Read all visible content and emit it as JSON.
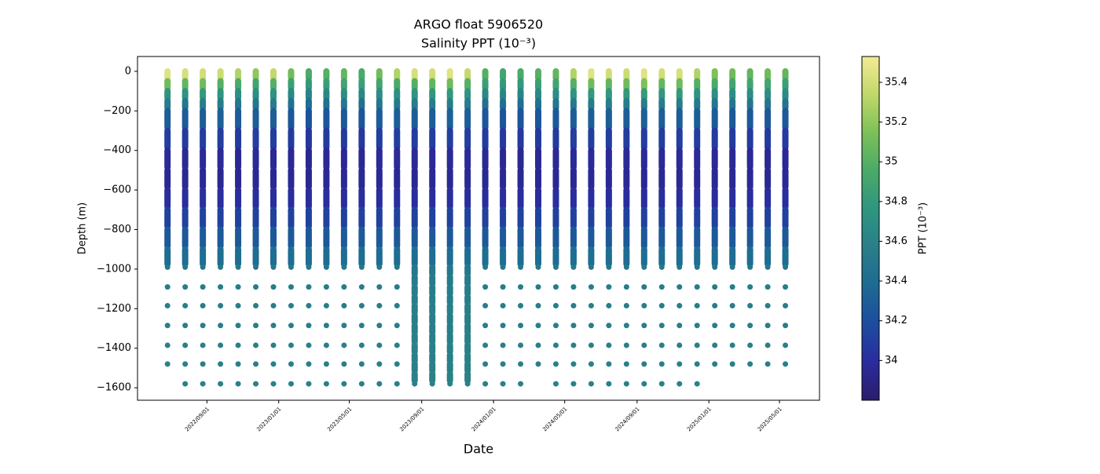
{
  "chart_data": {
    "type": "profile_scatter",
    "title": "ARGO float 5906520",
    "subtitle": "Salinity PPT (10⁻³)",
    "x_label": "Date",
    "y_label": "Depth (m)",
    "colorbar_label": "PPT (10⁻³)",
    "xlim": [
      "2022-05-06",
      "2025-07-08"
    ],
    "xticks": [
      {
        "value": "2022-09-01",
        "label": "2022/09/01"
      },
      {
        "value": "2023-01-01",
        "label": "2023/01/01"
      },
      {
        "value": "2023-05-01",
        "label": "2023/05/01"
      },
      {
        "value": "2023-09-01",
        "label": "2023/09/01"
      },
      {
        "value": "2024-01-01",
        "label": "2024/01/01"
      },
      {
        "value": "2024-05-01",
        "label": "2024/05/01"
      },
      {
        "value": "2024-09-01",
        "label": "2024/09/01"
      },
      {
        "value": "2025-01-01",
        "label": "2025/01/01"
      },
      {
        "value": "2025-05-01",
        "label": "2025/05/01"
      }
    ],
    "ylim": [
      -1663,
      75
    ],
    "yticks": [
      0,
      {
        "value": -200,
        "label": "−200"
      },
      {
        "value": -400,
        "label": "−400"
      },
      {
        "value": -600,
        "label": "−600"
      },
      {
        "value": -800,
        "label": "−800"
      },
      {
        "value": -1000,
        "label": "−1000"
      },
      {
        "value": -1200,
        "label": "−1200"
      },
      {
        "value": -1400,
        "label": "−1400"
      },
      {
        "value": -1600,
        "label": "−1600"
      }
    ],
    "clim": [
      33.8,
      35.53
    ],
    "colorbar_ticks": [
      34.0,
      34.2,
      34.4,
      34.6,
      34.8,
      35.0,
      35.2,
      35.4
    ],
    "colormap": [
      "#2a1d6b",
      "#2a2c9e",
      "#1d4c9e",
      "#1d6a93",
      "#297f89",
      "#2f9580",
      "#4aaa68",
      "#7cc058",
      "#c0d86a",
      "#f4ea95"
    ],
    "depths": [
      0,
      -50,
      -100,
      -150,
      -200,
      -300,
      -400,
      -500,
      -600,
      -700,
      -800,
      -900,
      -990,
      -1040,
      -1090,
      -1140,
      -1185,
      -1235,
      -1285,
      -1335,
      -1385,
      -1435,
      -1480,
      -1530,
      -1580
    ],
    "x": [
      "2022-06-26",
      "2022-07-26",
      "2022-08-25",
      "2022-09-24",
      "2022-10-24",
      "2022-11-23",
      "2022-12-23",
      "2023-01-22",
      "2023-02-21",
      "2023-03-23",
      "2023-04-22",
      "2023-05-22",
      "2023-06-21",
      "2023-07-21",
      "2023-08-20",
      "2023-09-19",
      "2023-10-19",
      "2023-11-18",
      "2023-12-18",
      "2024-01-17",
      "2024-02-16",
      "2024-03-17",
      "2024-04-16",
      "2024-05-16",
      "2024-06-15",
      "2024-07-15",
      "2024-08-14",
      "2024-09-13",
      "2024-10-13",
      "2024-11-12",
      "2024-12-12",
      "2025-01-11",
      "2025-02-10",
      "2025-03-12",
      "2025-04-11",
      "2025-05-11"
    ],
    "values": [
      [
        35.45,
        35.1,
        34.75,
        34.55,
        34.3,
        34.1,
        33.97,
        33.95,
        34.0,
        34.12,
        34.27,
        34.4,
        34.5,
        null,
        34.55,
        null,
        34.56,
        null,
        34.57,
        null,
        34.58,
        null,
        34.58,
        null,
        null
      ],
      [
        35.42,
        35.05,
        34.75,
        34.5,
        34.28,
        34.08,
        33.96,
        33.95,
        34.0,
        34.12,
        34.27,
        34.4,
        34.5,
        null,
        34.55,
        null,
        34.56,
        null,
        34.57,
        null,
        34.58,
        null,
        34.58,
        null,
        34.59
      ],
      [
        35.4,
        35.1,
        34.8,
        34.55,
        34.3,
        34.1,
        33.97,
        33.95,
        34.01,
        34.13,
        34.28,
        34.4,
        34.5,
        null,
        34.55,
        null,
        34.56,
        null,
        34.57,
        null,
        34.58,
        null,
        34.58,
        null,
        34.59
      ],
      [
        35.38,
        35.0,
        34.75,
        34.55,
        34.32,
        34.1,
        33.97,
        33.94,
        34.0,
        34.12,
        34.27,
        34.41,
        34.5,
        null,
        34.55,
        null,
        34.56,
        null,
        34.57,
        null,
        34.58,
        null,
        34.58,
        null,
        34.59
      ],
      [
        35.3,
        34.95,
        34.7,
        34.5,
        34.28,
        34.08,
        33.95,
        33.94,
        34.0,
        34.12,
        34.27,
        34.4,
        34.5,
        null,
        34.55,
        null,
        34.56,
        null,
        34.57,
        null,
        34.58,
        null,
        34.58,
        null,
        34.59
      ],
      [
        35.2,
        34.9,
        34.7,
        34.5,
        34.3,
        34.1,
        33.97,
        33.95,
        34.0,
        34.12,
        34.27,
        34.4,
        34.5,
        null,
        34.55,
        null,
        34.56,
        null,
        34.57,
        null,
        34.58,
        null,
        34.58,
        null,
        34.59
      ],
      [
        35.35,
        35.0,
        34.75,
        34.55,
        34.3,
        34.1,
        33.96,
        33.95,
        34.0,
        34.12,
        34.27,
        34.4,
        34.5,
        null,
        34.55,
        null,
        34.56,
        null,
        34.57,
        null,
        34.58,
        null,
        34.58,
        null,
        34.59
      ],
      [
        35.1,
        34.85,
        34.65,
        34.45,
        34.25,
        34.08,
        33.96,
        33.95,
        34.0,
        34.12,
        34.27,
        34.4,
        34.5,
        null,
        34.55,
        null,
        34.56,
        null,
        34.57,
        null,
        34.58,
        null,
        34.58,
        null,
        34.59
      ],
      [
        34.95,
        34.8,
        34.6,
        34.4,
        34.22,
        34.05,
        33.94,
        33.93,
        34.0,
        34.12,
        34.27,
        34.4,
        34.5,
        null,
        34.55,
        null,
        34.56,
        null,
        34.57,
        null,
        34.58,
        null,
        34.58,
        null,
        34.59
      ],
      [
        35.0,
        34.85,
        34.65,
        34.45,
        34.25,
        34.08,
        33.96,
        33.95,
        34.0,
        34.12,
        34.27,
        34.4,
        34.5,
        null,
        34.55,
        null,
        34.56,
        null,
        34.57,
        null,
        34.58,
        null,
        34.58,
        null,
        34.59
      ],
      [
        35.05,
        34.9,
        34.7,
        34.5,
        34.27,
        34.08,
        33.96,
        33.95,
        34.0,
        34.12,
        34.27,
        34.4,
        34.5,
        null,
        34.55,
        null,
        34.56,
        null,
        34.57,
        null,
        34.58,
        null,
        34.58,
        null,
        34.59
      ],
      [
        34.95,
        34.85,
        34.65,
        34.45,
        34.25,
        34.07,
        33.95,
        33.95,
        34.0,
        34.12,
        34.27,
        34.4,
        34.5,
        null,
        34.55,
        null,
        34.56,
        null,
        34.57,
        null,
        34.58,
        null,
        34.58,
        null,
        34.59
      ],
      [
        35.1,
        34.9,
        34.7,
        34.5,
        34.28,
        34.1,
        33.97,
        33.95,
        34.0,
        34.12,
        34.27,
        34.4,
        34.5,
        null,
        34.55,
        null,
        34.56,
        null,
        34.57,
        null,
        34.58,
        null,
        34.58,
        null,
        34.59
      ],
      [
        35.3,
        34.95,
        34.72,
        34.52,
        34.3,
        34.1,
        33.97,
        33.95,
        34.0,
        34.12,
        34.27,
        34.4,
        34.5,
        null,
        34.55,
        null,
        34.56,
        null,
        34.57,
        null,
        34.58,
        null,
        34.58,
        null,
        34.59
      ],
      [
        35.42,
        35.0,
        34.75,
        34.55,
        34.3,
        34.1,
        33.97,
        33.95,
        34.0,
        34.12,
        34.27,
        34.4,
        34.5,
        34.54,
        34.55,
        34.55,
        34.56,
        34.56,
        34.57,
        34.57,
        34.58,
        34.58,
        34.58,
        34.59,
        34.59
      ],
      [
        35.4,
        35.05,
        34.78,
        34.55,
        34.3,
        34.1,
        33.97,
        33.95,
        34.0,
        34.12,
        34.27,
        34.4,
        34.5,
        34.54,
        34.55,
        34.55,
        34.56,
        34.56,
        34.57,
        34.57,
        34.58,
        34.58,
        34.58,
        34.59,
        34.59
      ],
      [
        35.45,
        35.1,
        34.8,
        34.56,
        34.32,
        34.1,
        33.97,
        33.95,
        34.0,
        34.12,
        34.27,
        34.4,
        34.5,
        34.54,
        34.55,
        34.55,
        34.56,
        34.56,
        34.57,
        34.57,
        34.58,
        34.58,
        34.58,
        34.59,
        34.59
      ],
      [
        35.35,
        35.0,
        34.75,
        34.55,
        34.3,
        34.1,
        33.97,
        33.95,
        34.0,
        34.12,
        34.27,
        34.4,
        34.5,
        34.54,
        34.55,
        34.55,
        34.56,
        34.56,
        34.57,
        34.57,
        34.58,
        34.58,
        34.58,
        34.59,
        34.59
      ],
      [
        35.0,
        34.85,
        34.65,
        34.45,
        34.25,
        34.08,
        33.96,
        33.95,
        34.0,
        34.12,
        34.27,
        34.4,
        34.5,
        null,
        34.55,
        null,
        34.56,
        null,
        34.57,
        null,
        34.58,
        null,
        34.58,
        null,
        34.59
      ],
      [
        34.9,
        34.8,
        34.62,
        34.43,
        34.24,
        34.07,
        33.95,
        33.95,
        34.0,
        34.12,
        34.27,
        34.4,
        34.5,
        null,
        34.55,
        null,
        34.56,
        null,
        34.57,
        null,
        34.58,
        null,
        34.58,
        null,
        34.59
      ],
      [
        34.95,
        34.8,
        34.62,
        34.43,
        34.24,
        34.07,
        33.95,
        33.95,
        34.0,
        34.12,
        34.27,
        34.4,
        34.5,
        null,
        34.55,
        null,
        34.56,
        null,
        34.57,
        null,
        34.58,
        null,
        34.58,
        null,
        34.59
      ],
      [
        35.0,
        34.85,
        34.65,
        34.45,
        34.25,
        34.08,
        33.96,
        33.95,
        34.0,
        34.12,
        34.27,
        34.4,
        34.5,
        null,
        34.55,
        null,
        34.56,
        null,
        34.57,
        null,
        34.58,
        null,
        34.58,
        null,
        null
      ],
      [
        35.05,
        34.9,
        34.7,
        34.5,
        34.27,
        34.08,
        33.96,
        33.95,
        34.0,
        34.12,
        34.27,
        34.4,
        34.5,
        null,
        34.55,
        null,
        34.56,
        null,
        34.57,
        null,
        34.58,
        null,
        34.58,
        null,
        34.59
      ],
      [
        35.3,
        35.0,
        34.75,
        34.52,
        34.3,
        34.1,
        33.97,
        33.95,
        34.0,
        34.12,
        34.27,
        34.4,
        34.5,
        null,
        34.55,
        null,
        34.56,
        null,
        34.57,
        null,
        34.58,
        null,
        34.58,
        null,
        34.59
      ],
      [
        35.45,
        35.1,
        34.8,
        34.55,
        34.3,
        34.1,
        33.97,
        33.95,
        34.0,
        34.12,
        34.27,
        34.4,
        34.5,
        null,
        34.55,
        null,
        34.56,
        null,
        34.57,
        null,
        34.58,
        null,
        34.58,
        null,
        34.59
      ],
      [
        35.4,
        35.05,
        34.78,
        34.55,
        34.3,
        34.1,
        33.97,
        33.95,
        34.0,
        34.12,
        34.27,
        34.4,
        34.5,
        null,
        34.55,
        null,
        34.56,
        null,
        34.57,
        null,
        34.58,
        null,
        34.58,
        null,
        34.59
      ],
      [
        35.38,
        35.1,
        34.8,
        34.55,
        34.3,
        34.1,
        33.97,
        33.95,
        34.0,
        34.12,
        34.27,
        34.4,
        34.5,
        null,
        34.55,
        null,
        34.56,
        null,
        34.57,
        null,
        34.58,
        null,
        34.58,
        null,
        34.59
      ],
      [
        35.45,
        35.15,
        34.82,
        34.56,
        34.32,
        34.1,
        33.97,
        33.95,
        34.0,
        34.12,
        34.27,
        34.4,
        34.5,
        null,
        34.55,
        null,
        34.56,
        null,
        34.57,
        null,
        34.58,
        null,
        34.58,
        null,
        34.59
      ],
      [
        35.4,
        35.05,
        34.78,
        34.55,
        34.3,
        34.1,
        33.97,
        33.95,
        34.0,
        34.12,
        34.27,
        34.4,
        34.5,
        null,
        34.55,
        null,
        34.56,
        null,
        34.57,
        null,
        34.58,
        null,
        34.58,
        null,
        34.59
      ],
      [
        35.42,
        35.1,
        34.8,
        34.55,
        34.3,
        34.1,
        33.97,
        33.95,
        34.0,
        34.12,
        34.27,
        34.4,
        34.5,
        null,
        34.55,
        null,
        34.56,
        null,
        34.57,
        null,
        34.58,
        null,
        34.58,
        null,
        34.59
      ],
      [
        35.3,
        35.0,
        34.75,
        34.52,
        34.3,
        34.1,
        33.97,
        33.95,
        34.0,
        34.12,
        34.27,
        34.4,
        34.5,
        null,
        34.55,
        null,
        34.56,
        null,
        34.57,
        null,
        34.58,
        null,
        34.58,
        null,
        34.59
      ],
      [
        35.15,
        34.95,
        34.72,
        34.5,
        34.28,
        34.09,
        33.96,
        33.95,
        34.0,
        34.12,
        34.27,
        34.4,
        34.5,
        null,
        34.55,
        null,
        34.56,
        null,
        34.57,
        null,
        34.58,
        null,
        34.58,
        null,
        null
      ],
      [
        35.1,
        34.9,
        34.7,
        34.5,
        34.27,
        34.08,
        33.96,
        33.95,
        34.0,
        34.12,
        34.27,
        34.4,
        34.5,
        null,
        34.55,
        null,
        34.56,
        null,
        34.57,
        null,
        34.58,
        null,
        34.58,
        null,
        null
      ],
      [
        35.05,
        34.9,
        34.7,
        34.5,
        34.27,
        34.08,
        33.96,
        33.95,
        34.0,
        34.12,
        34.27,
        34.4,
        34.5,
        null,
        34.55,
        null,
        34.56,
        null,
        34.57,
        null,
        34.58,
        null,
        34.58,
        null,
        null
      ],
      [
        35.1,
        34.9,
        34.7,
        34.5,
        34.27,
        34.08,
        33.96,
        33.95,
        34.0,
        34.12,
        34.27,
        34.4,
        34.5,
        null,
        34.55,
        null,
        34.56,
        null,
        34.57,
        null,
        34.58,
        null,
        34.58,
        null,
        null
      ],
      [
        35.05,
        34.85,
        34.68,
        34.48,
        34.26,
        34.08,
        33.96,
        33.95,
        34.0,
        34.12,
        34.27,
        34.4,
        34.5,
        null,
        34.55,
        null,
        34.56,
        null,
        34.57,
        null,
        34.58,
        null,
        34.58,
        null,
        null
      ]
    ]
  }
}
